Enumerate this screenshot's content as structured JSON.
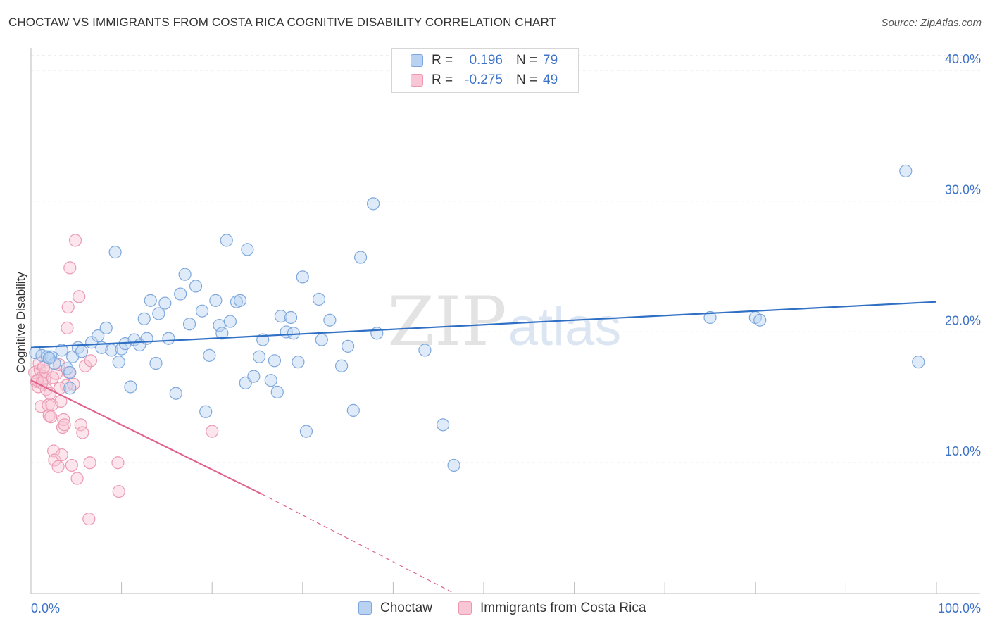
{
  "title": "CHOCTAW VS IMMIGRANTS FROM COSTA RICA COGNITIVE DISABILITY CORRELATION CHART",
  "source": "Source: ZipAtlas.com",
  "watermark": {
    "zip": "ZIP",
    "atlas": "atlas"
  },
  "legend": {
    "rows": [
      {
        "r_label": "R =",
        "r_value": "0.196",
        "n_label": "N =",
        "n_value": "79"
      },
      {
        "r_label": "R =",
        "r_value": "-0.275",
        "n_label": "N =",
        "n_value": "49"
      }
    ]
  },
  "bottom_legend": {
    "series1": "Choctaw",
    "series2": "Immigrants from Costa Rica"
  },
  "colors": {
    "blue_fill": "#b9d2f2",
    "blue_stroke": "#7ea8dd",
    "blue_line": "#2f6fc4",
    "pink_fill": "#f8c6d4",
    "pink_stroke": "#ec9ab3",
    "pink_line": "#e0628e",
    "axis_label": "#3f73c8",
    "grid": "#dcdcdc"
  },
  "chart_data": {
    "type": "scatter",
    "title": "CHOCTAW VS IMMIGRANTS FROM COSTA RICA COGNITIVE DISABILITY CORRELATION CHART",
    "xlabel": "",
    "ylabel": "Cognitive Disability",
    "xlim": [
      0,
      100
    ],
    "ylim": [
      0,
      41.5
    ],
    "x_tick_labels": [
      "0.0%",
      "100.0%"
    ],
    "y_ticks": [
      10,
      20,
      30,
      40
    ],
    "y_tick_labels": [
      "10.0%",
      "20.0%",
      "30.0%",
      "40.0%"
    ],
    "legend_position": "top-center",
    "series": [
      {
        "name": "Choctaw",
        "r": 0.196,
        "n": 79,
        "trend": {
          "x": [
            0,
            100
          ],
          "y": [
            18.8,
            22.3
          ]
        },
        "points": [
          [
            0.5,
            18.4
          ],
          [
            1.2,
            18.2
          ],
          [
            1.8,
            18.1
          ],
          [
            2.2,
            18.1
          ],
          [
            2.6,
            17.6
          ],
          [
            3.4,
            18.6
          ],
          [
            4.0,
            17.2
          ],
          [
            4.3,
            16.9
          ],
          [
            4.3,
            15.7
          ],
          [
            4.6,
            18.1
          ],
          [
            5.2,
            18.8
          ],
          [
            5.6,
            18.5
          ],
          [
            6.7,
            19.2
          ],
          [
            7.4,
            19.7
          ],
          [
            7.8,
            18.8
          ],
          [
            8.3,
            20.3
          ],
          [
            8.9,
            18.6
          ],
          [
            9.3,
            26.1
          ],
          [
            9.7,
            17.7
          ],
          [
            10.0,
            18.7
          ],
          [
            10.4,
            19.1
          ],
          [
            11.0,
            15.8
          ],
          [
            11.4,
            19.4
          ],
          [
            12.0,
            19.0
          ],
          [
            12.5,
            21.0
          ],
          [
            12.8,
            19.5
          ],
          [
            13.2,
            22.4
          ],
          [
            13.8,
            17.6
          ],
          [
            14.1,
            21.4
          ],
          [
            14.8,
            22.2
          ],
          [
            15.2,
            19.5
          ],
          [
            16.0,
            15.3
          ],
          [
            16.5,
            22.9
          ],
          [
            17.0,
            24.4
          ],
          [
            17.5,
            20.6
          ],
          [
            18.2,
            23.5
          ],
          [
            18.9,
            21.6
          ],
          [
            19.3,
            13.9
          ],
          [
            19.7,
            18.2
          ],
          [
            20.4,
            22.4
          ],
          [
            20.8,
            20.5
          ],
          [
            21.1,
            19.9
          ],
          [
            21.6,
            27.0
          ],
          [
            22.0,
            20.8
          ],
          [
            22.7,
            22.3
          ],
          [
            23.1,
            22.4
          ],
          [
            23.7,
            16.1
          ],
          [
            23.9,
            26.3
          ],
          [
            24.6,
            16.6
          ],
          [
            25.2,
            18.1
          ],
          [
            25.6,
            19.4
          ],
          [
            26.5,
            16.3
          ],
          [
            26.9,
            17.8
          ],
          [
            27.2,
            15.4
          ],
          [
            27.6,
            21.2
          ],
          [
            28.2,
            20.0
          ],
          [
            28.7,
            21.1
          ],
          [
            29.0,
            19.9
          ],
          [
            29.5,
            17.7
          ],
          [
            30.0,
            24.2
          ],
          [
            30.4,
            12.4
          ],
          [
            31.8,
            22.5
          ],
          [
            32.1,
            19.4
          ],
          [
            33.0,
            20.9
          ],
          [
            34.3,
            17.4
          ],
          [
            35.0,
            18.9
          ],
          [
            35.6,
            14.0
          ],
          [
            36.4,
            25.7
          ],
          [
            37.8,
            29.8
          ],
          [
            38.2,
            19.9
          ],
          [
            43.5,
            18.6
          ],
          [
            45.5,
            12.9
          ],
          [
            46.7,
            9.8
          ],
          [
            75.0,
            21.1
          ],
          [
            80.0,
            21.1
          ],
          [
            80.5,
            20.9
          ],
          [
            96.6,
            32.3
          ],
          [
            98.0,
            17.7
          ],
          [
            2.0,
            18.0
          ]
        ]
      },
      {
        "name": "Immigrants from Costa Rica",
        "r": -0.275,
        "n": 49,
        "trend": {
          "x": [
            0,
            25.5
          ],
          "y": [
            16.3,
            7.6
          ]
        },
        "trend_dashed": {
          "x": [
            25.5,
            46.5
          ],
          "y": [
            7.6,
            0.1
          ]
        },
        "points": [
          [
            0.4,
            16.9
          ],
          [
            0.6,
            16.2
          ],
          [
            0.8,
            15.8
          ],
          [
            1.0,
            17.1
          ],
          [
            1.1,
            14.3
          ],
          [
            1.3,
            16.6
          ],
          [
            1.5,
            16.4
          ],
          [
            1.7,
            15.6
          ],
          [
            1.9,
            14.4
          ],
          [
            2.0,
            13.6
          ],
          [
            2.1,
            15.3
          ],
          [
            2.2,
            13.5
          ],
          [
            2.3,
            14.4
          ],
          [
            2.5,
            10.9
          ],
          [
            2.6,
            10.2
          ],
          [
            2.8,
            16.8
          ],
          [
            3.0,
            9.7
          ],
          [
            3.1,
            17.5
          ],
          [
            3.3,
            14.7
          ],
          [
            3.4,
            10.6
          ],
          [
            3.5,
            12.7
          ],
          [
            3.6,
            13.3
          ],
          [
            3.7,
            12.9
          ],
          [
            3.9,
            15.9
          ],
          [
            4.0,
            20.3
          ],
          [
            4.1,
            21.9
          ],
          [
            4.2,
            16.9
          ],
          [
            4.3,
            24.9
          ],
          [
            4.5,
            9.8
          ],
          [
            4.7,
            16.0
          ],
          [
            4.9,
            27.0
          ],
          [
            5.1,
            8.8
          ],
          [
            5.3,
            22.7
          ],
          [
            5.5,
            12.9
          ],
          [
            5.7,
            12.3
          ],
          [
            6.0,
            17.4
          ],
          [
            6.4,
            5.7
          ],
          [
            6.5,
            10.0
          ],
          [
            6.6,
            17.8
          ],
          [
            9.6,
            10.0
          ],
          [
            9.7,
            7.8
          ],
          [
            20.0,
            12.4
          ],
          [
            0.7,
            16.3
          ],
          [
            1.2,
            16.1
          ],
          [
            1.6,
            17.0
          ],
          [
            2.4,
            16.5
          ],
          [
            3.2,
            15.7
          ],
          [
            0.9,
            17.6
          ],
          [
            1.4,
            17.3
          ]
        ]
      }
    ]
  }
}
